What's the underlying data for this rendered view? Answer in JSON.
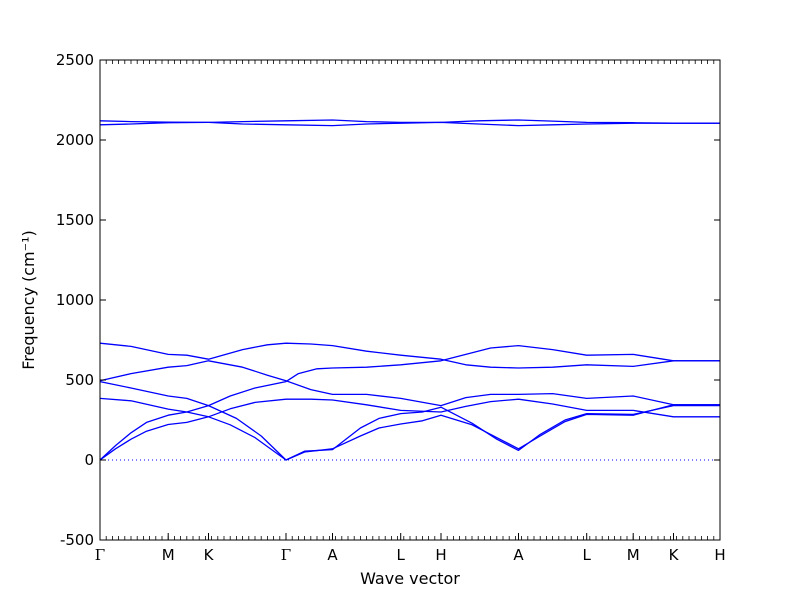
{
  "chart_data": {
    "type": "line",
    "title": "",
    "xlabel": "Wave vector",
    "ylabel": "Frequency (cm⁻¹)",
    "ylim": [
      -500,
      2500
    ],
    "yticks": [
      -500,
      0,
      500,
      1000,
      1500,
      2000,
      2500
    ],
    "grid": false,
    "legend": "none",
    "line_color": "#0000ff",
    "zero_line_color": "#0000ff",
    "xlim": [
      0,
      10.0
    ],
    "high_symmetry_points": [
      {
        "label": "Γ",
        "x": 0.0
      },
      {
        "label": "M",
        "x": 1.1
      },
      {
        "label": "K",
        "x": 1.75
      },
      {
        "label": "Γ",
        "x": 3.0
      },
      {
        "label": "A",
        "x": 3.75
      },
      {
        "label": "L",
        "x": 4.85
      },
      {
        "label": "H",
        "x": 5.5
      },
      {
        "label": "A",
        "x": 6.75
      },
      {
        "label": "L",
        "x": 7.85
      },
      {
        "label": "M",
        "x": 8.6
      },
      {
        "label": "K",
        "x": 9.25
      },
      {
        "label": "H",
        "x": 10.0
      }
    ],
    "series": [
      {
        "values": [
          [
            0,
            0
          ],
          [
            0.25,
            90
          ],
          [
            0.5,
            170
          ],
          [
            0.75,
            235
          ],
          [
            1.1,
            280
          ],
          [
            1.4,
            300
          ],
          [
            1.75,
            340
          ],
          [
            2.1,
            400
          ],
          [
            2.5,
            450
          ],
          [
            3.0,
            490
          ],
          [
            3.2,
            540
          ],
          [
            3.5,
            570
          ],
          [
            3.75,
            575
          ],
          [
            4.3,
            580
          ],
          [
            4.85,
            595
          ],
          [
            5.5,
            620
          ],
          [
            5.9,
            660
          ],
          [
            6.3,
            700
          ],
          [
            6.75,
            715
          ],
          [
            7.3,
            690
          ],
          [
            7.85,
            655
          ],
          [
            8.6,
            660
          ],
          [
            9.25,
            620
          ],
          [
            10.0,
            620
          ]
        ]
      },
      {
        "values": [
          [
            0,
            0
          ],
          [
            0.25,
            70
          ],
          [
            0.5,
            130
          ],
          [
            0.75,
            180
          ],
          [
            1.1,
            222
          ],
          [
            1.4,
            235
          ],
          [
            1.75,
            270
          ],
          [
            2.1,
            320
          ],
          [
            2.5,
            360
          ],
          [
            3.0,
            380
          ],
          [
            3.4,
            380
          ],
          [
            3.75,
            375
          ],
          [
            4.3,
            345
          ],
          [
            4.85,
            310
          ],
          [
            5.5,
            300
          ],
          [
            5.9,
            335
          ],
          [
            6.3,
            365
          ],
          [
            6.75,
            380
          ],
          [
            7.3,
            350
          ],
          [
            7.85,
            310
          ],
          [
            8.6,
            310
          ],
          [
            9.25,
            270
          ],
          [
            10.0,
            270
          ]
        ]
      },
      {
        "values": [
          [
            0,
            385
          ],
          [
            0.5,
            370
          ],
          [
            1.1,
            318
          ],
          [
            1.4,
            300
          ],
          [
            1.75,
            270
          ],
          [
            2.1,
            220
          ],
          [
            2.5,
            140
          ],
          [
            3.0,
            0
          ],
          [
            3.3,
            50
          ],
          [
            3.75,
            70
          ],
          [
            4.2,
            150
          ],
          [
            4.5,
            200
          ],
          [
            4.85,
            225
          ],
          [
            5.2,
            245
          ],
          [
            5.5,
            280
          ],
          [
            6.0,
            220
          ],
          [
            6.5,
            120
          ],
          [
            6.75,
            70
          ],
          [
            7.1,
            150
          ],
          [
            7.5,
            240
          ],
          [
            7.85,
            285
          ],
          [
            8.6,
            280
          ],
          [
            9.25,
            345
          ],
          [
            10.0,
            345
          ]
        ]
      },
      {
        "values": [
          [
            0,
            490
          ],
          [
            0.5,
            450
          ],
          [
            1.1,
            400
          ],
          [
            1.4,
            385
          ],
          [
            1.75,
            340
          ],
          [
            2.2,
            260
          ],
          [
            2.6,
            150
          ],
          [
            3.0,
            0
          ],
          [
            3.3,
            55
          ],
          [
            3.75,
            65
          ],
          [
            4.2,
            200
          ],
          [
            4.5,
            260
          ],
          [
            4.85,
            290
          ],
          [
            5.2,
            300
          ],
          [
            5.5,
            330
          ],
          [
            6.0,
            230
          ],
          [
            6.4,
            130
          ],
          [
            6.75,
            60
          ],
          [
            7.1,
            160
          ],
          [
            7.5,
            250
          ],
          [
            7.85,
            290
          ],
          [
            8.6,
            285
          ],
          [
            9.25,
            340
          ],
          [
            10.0,
            340
          ]
        ]
      },
      {
        "values": [
          [
            0,
            495
          ],
          [
            0.5,
            540
          ],
          [
            1.1,
            580
          ],
          [
            1.4,
            590
          ],
          [
            1.75,
            620
          ],
          [
            2.3,
            580
          ],
          [
            2.7,
            530
          ],
          [
            3.0,
            495
          ],
          [
            3.4,
            440
          ],
          [
            3.75,
            410
          ],
          [
            4.3,
            410
          ],
          [
            4.85,
            385
          ],
          [
            5.5,
            340
          ],
          [
            5.9,
            390
          ],
          [
            6.3,
            410
          ],
          [
            6.75,
            410
          ],
          [
            7.3,
            415
          ],
          [
            7.85,
            385
          ],
          [
            8.6,
            400
          ],
          [
            9.25,
            345
          ],
          [
            10.0,
            345
          ]
        ]
      },
      {
        "values": [
          [
            0,
            730
          ],
          [
            0.5,
            710
          ],
          [
            1.1,
            660
          ],
          [
            1.4,
            655
          ],
          [
            1.75,
            630
          ],
          [
            2.3,
            690
          ],
          [
            2.7,
            720
          ],
          [
            3.0,
            730
          ],
          [
            3.4,
            725
          ],
          [
            3.75,
            715
          ],
          [
            4.3,
            680
          ],
          [
            4.85,
            655
          ],
          [
            5.5,
            630
          ],
          [
            5.9,
            595
          ],
          [
            6.3,
            580
          ],
          [
            6.75,
            575
          ],
          [
            7.3,
            580
          ],
          [
            7.85,
            595
          ],
          [
            8.6,
            585
          ],
          [
            9.25,
            620
          ],
          [
            10.0,
            620
          ]
        ]
      },
      {
        "values": [
          [
            0,
            2095
          ],
          [
            0.5,
            2100
          ],
          [
            1.1,
            2108
          ],
          [
            1.75,
            2110
          ],
          [
            2.3,
            2115
          ],
          [
            3.0,
            2120
          ],
          [
            3.75,
            2125
          ],
          [
            4.3,
            2115
          ],
          [
            4.85,
            2110
          ],
          [
            5.5,
            2110
          ],
          [
            6.1,
            2120
          ],
          [
            6.75,
            2125
          ],
          [
            7.3,
            2118
          ],
          [
            7.85,
            2110
          ],
          [
            8.6,
            2108
          ],
          [
            9.25,
            2105
          ],
          [
            10.0,
            2105
          ]
        ]
      },
      {
        "values": [
          [
            0,
            2120
          ],
          [
            0.5,
            2115
          ],
          [
            1.1,
            2112
          ],
          [
            1.75,
            2110
          ],
          [
            2.3,
            2100
          ],
          [
            3.0,
            2095
          ],
          [
            3.75,
            2090
          ],
          [
            4.3,
            2100
          ],
          [
            4.85,
            2105
          ],
          [
            5.5,
            2110
          ],
          [
            6.1,
            2100
          ],
          [
            6.75,
            2090
          ],
          [
            7.3,
            2095
          ],
          [
            7.85,
            2100
          ],
          [
            8.6,
            2105
          ],
          [
            9.25,
            2105
          ],
          [
            10.0,
            2105
          ]
        ]
      }
    ]
  }
}
